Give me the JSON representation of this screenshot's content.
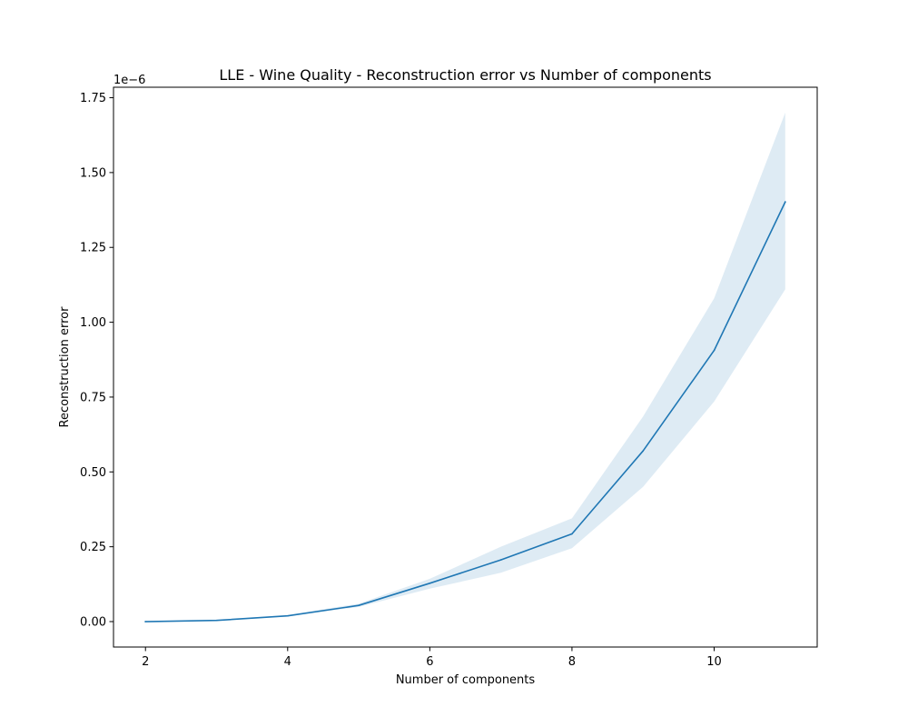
{
  "chart_data": {
    "type": "line",
    "title": "LLE - Wine Quality - Reconstruction error vs Number of components",
    "xlabel": "Number of components",
    "ylabel": "Reconstruction error",
    "y_offset_label": "1e−6",
    "xlim": [
      1.55,
      11.45
    ],
    "ylim": [
      -0.085,
      1.785
    ],
    "x_ticks": [
      2,
      4,
      6,
      8,
      10
    ],
    "x_tick_labels": [
      "2",
      "4",
      "6",
      "8",
      "10"
    ],
    "y_ticks": [
      0.0,
      0.25,
      0.5,
      0.75,
      1.0,
      1.25,
      1.5,
      1.75
    ],
    "y_tick_labels": [
      "0.00",
      "0.25",
      "0.50",
      "0.75",
      "1.00",
      "1.25",
      "1.50",
      "1.75"
    ],
    "grid": false,
    "series": [
      {
        "x": [
          2,
          3,
          4,
          5,
          6,
          7,
          8,
          9,
          10,
          11
        ],
        "y": [
          0.0,
          0.004,
          0.019,
          0.054,
          0.128,
          0.206,
          0.293,
          0.57,
          0.906,
          1.402
        ],
        "y_lower": [
          0.0,
          0.003,
          0.017,
          0.049,
          0.11,
          0.163,
          0.245,
          0.45,
          0.735,
          1.11
        ],
        "y_upper": [
          0.0,
          0.005,
          0.022,
          0.06,
          0.143,
          0.25,
          0.345,
          0.685,
          1.08,
          1.7
        ],
        "color": "#1f77b4",
        "band_color": "#1f77b4"
      }
    ]
  }
}
